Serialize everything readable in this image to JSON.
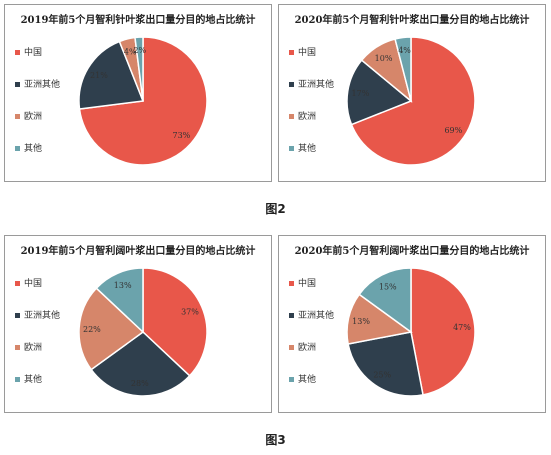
{
  "colors": {
    "china": "#e8574a",
    "asia": "#2f3f4d",
    "europe": "#d6866a",
    "other": "#6ba3ac"
  },
  "legend": [
    "中国",
    "亚洲其他",
    "欧洲",
    "其他"
  ],
  "figure2_caption": "图2",
  "figure3_caption": "图3",
  "chart_data": [
    {
      "type": "pie",
      "title": "2019年前5个月智利针叶浆出口量分目的地占比统计",
      "categories": [
        "中国",
        "亚洲其他",
        "欧洲",
        "其他"
      ],
      "values": [
        73,
        21,
        4,
        2
      ],
      "labels": [
        "73%",
        "21%",
        "4%",
        "2%"
      ],
      "legend_position": "left"
    },
    {
      "type": "pie",
      "title": "2020年前5个月智利针叶浆出口量分目的地占比统计",
      "categories": [
        "中国",
        "亚洲其他",
        "欧洲",
        "其他"
      ],
      "values": [
        69,
        17,
        10,
        4
      ],
      "labels": [
        "69%",
        "17%",
        "10%",
        "4%"
      ],
      "legend_position": "left"
    },
    {
      "type": "pie",
      "title": "2019年前5个月智利阔叶浆出口量分目的地占比统计",
      "categories": [
        "中国",
        "亚洲其他",
        "欧洲",
        "其他"
      ],
      "values": [
        37,
        28,
        22,
        13
      ],
      "labels": [
        "37%",
        "28%",
        "22%",
        "13%"
      ],
      "legend_position": "left"
    },
    {
      "type": "pie",
      "title": "2020年前5个月智利阔叶浆出口量分目的地占比统计",
      "categories": [
        "中国",
        "亚洲其他",
        "欧洲",
        "其他"
      ],
      "values": [
        47,
        25,
        13,
        15
      ],
      "labels": [
        "47%",
        "25%",
        "13%",
        "15%"
      ],
      "legend_position": "left"
    }
  ]
}
